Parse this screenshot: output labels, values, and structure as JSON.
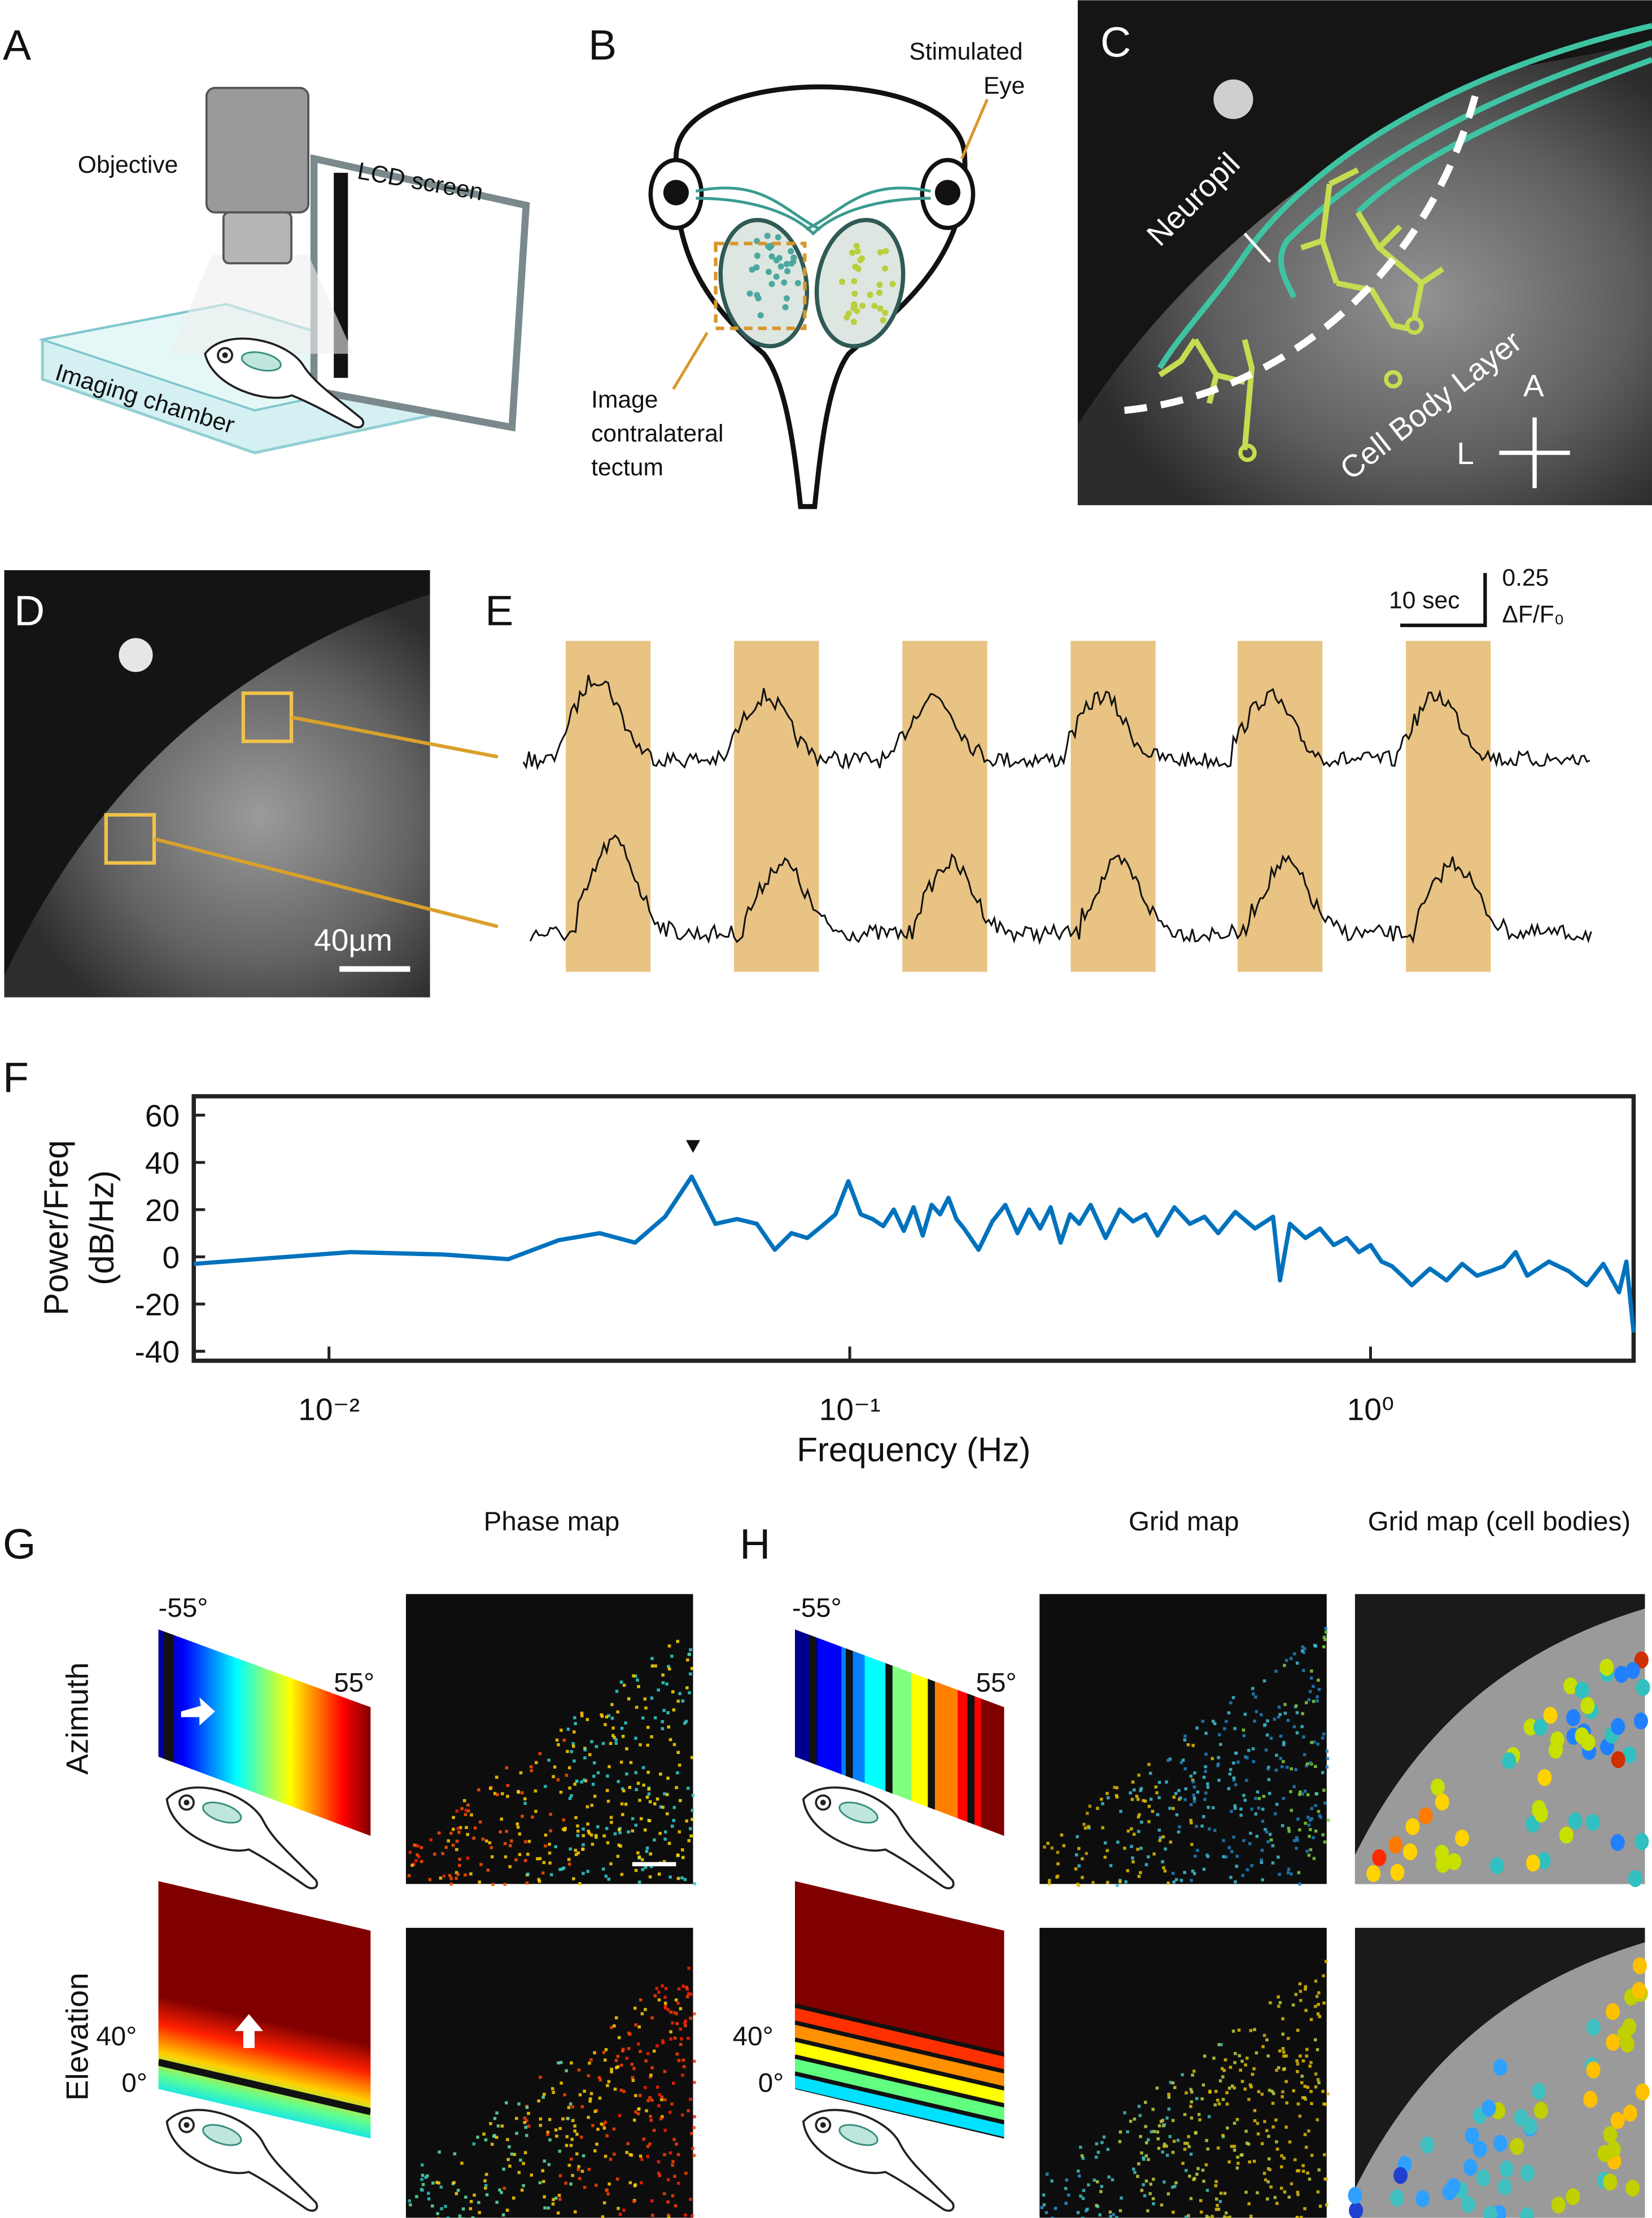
{
  "panels": {
    "A": {
      "label": "A",
      "objective": "Objective",
      "screen": "LCD screen",
      "chamber": "Imaging chamber"
    },
    "B": {
      "label": "B",
      "eye": [
        "Stimulated",
        "Eye"
      ],
      "tectum": [
        "Image",
        "contralateral",
        "tectum"
      ]
    },
    "C": {
      "label": "C",
      "neuropil": "Neuropil",
      "cell_body_layer": "Cell Body Layer",
      "anterior": "A",
      "lateral": "L"
    },
    "D": {
      "label": "D",
      "scale_bar": "40µm"
    },
    "E": {
      "label": "E",
      "time_scale": "10 sec",
      "amplitude_scale": [
        "0.25",
        "ΔF/F₀"
      ]
    },
    "F": {
      "label": "F"
    },
    "G": {
      "label": "G",
      "map_title": "Phase map",
      "rows": [
        "Azimuth",
        "Elevation"
      ],
      "azimuth_range": [
        "-55°",
        "55°"
      ],
      "elevation_range": [
        "40°",
        "0°"
      ]
    },
    "H": {
      "label": "H",
      "map_titles": [
        "Grid map",
        "Grid map (cell bodies)"
      ],
      "azimuth_range": [
        "-55°",
        "55°"
      ],
      "elevation_range": [
        "40°",
        "0°"
      ]
    }
  },
  "chart_data": {
    "type": "line",
    "ylabel": [
      "Power/Freq",
      "(dB/Hz)"
    ],
    "xlabel": "Frequency (Hz)",
    "xscale": "log",
    "xlim": [
      0.0055,
      3.2
    ],
    "ylim": [
      -44,
      68
    ],
    "xticks": [
      {
        "value": 0.01,
        "label": "10⁻²"
      },
      {
        "value": 0.1,
        "label": "10⁻¹"
      },
      {
        "value": 1,
        "label": "10⁰"
      }
    ],
    "yticks": [
      -40,
      -20,
      0,
      20,
      40,
      60
    ],
    "x": [
      0.0055,
      0.011,
      0.0166,
      0.0221,
      0.0276,
      0.0331,
      0.0387,
      0.0442,
      0.0497,
      0.0552,
      0.0608,
      0.0663,
      0.0718,
      0.0773,
      0.0829,
      0.0884,
      0.0939,
      0.0994,
      0.105,
      0.1105,
      0.116,
      0.1215,
      0.127,
      0.1326,
      0.1381,
      0.1436,
      0.1491,
      0.1547,
      0.1602,
      0.1657,
      0.1768,
      0.1878,
      0.1989,
      0.21,
      0.221,
      0.232,
      0.243,
      0.254,
      0.265,
      0.276,
      0.29,
      0.31,
      0.33,
      0.35,
      0.37,
      0.39,
      0.42,
      0.45,
      0.48,
      0.51,
      0.55,
      0.6,
      0.65,
      0.67,
      0.7,
      0.75,
      0.8,
      0.85,
      0.9,
      0.95,
      1.0,
      1.05,
      1.1,
      1.15,
      1.2,
      1.3,
      1.4,
      1.5,
      1.6,
      1.7,
      1.8,
      1.9,
      2.0,
      2.2,
      2.4,
      2.6,
      2.8,
      3.0,
      3.1,
      3.2
    ],
    "series": [
      {
        "color": "#0072bd",
        "values": [
          -3,
          2,
          1,
          -1,
          7,
          10,
          6,
          17,
          34,
          14,
          16,
          14,
          3,
          10,
          8,
          13,
          18,
          32,
          18,
          16,
          13,
          20,
          11,
          21,
          9,
          22,
          18,
          25,
          16,
          12,
          3,
          15,
          22,
          10,
          20,
          12,
          21,
          6,
          18,
          14,
          22,
          8,
          20,
          15,
          18,
          9,
          21,
          14,
          17,
          10,
          19,
          12,
          17,
          -10,
          14,
          8,
          12,
          5,
          8,
          2,
          5,
          -2,
          -4,
          -8,
          -12,
          -5,
          -10,
          -3,
          -8,
          -6,
          -4,
          2,
          -8,
          -2,
          -6,
          -12,
          -3,
          -15,
          -2,
          -32
        ]
      }
    ]
  }
}
